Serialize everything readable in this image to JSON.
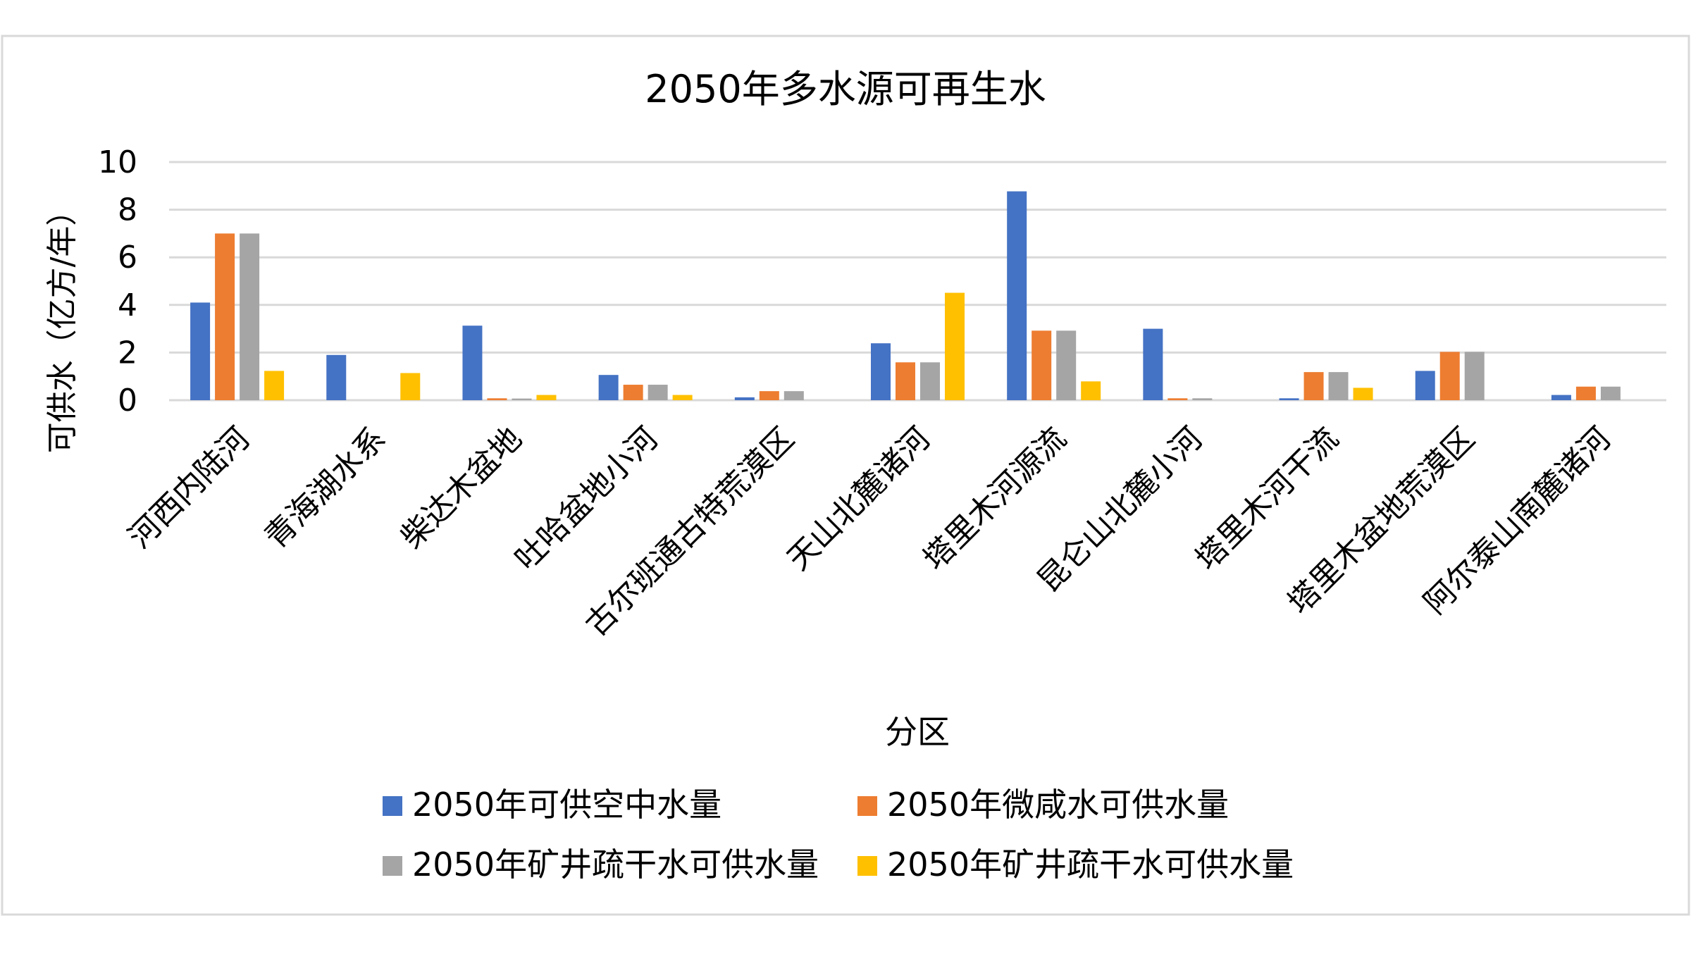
{
  "chart_data": {
    "type": "bar",
    "title": "2050年多水源可再生水",
    "xlabel": "分区",
    "ylabel": "可供水（亿方/年）",
    "ylim": [
      0,
      10
    ],
    "yticks": [
      "0",
      "2",
      "4",
      "6",
      "8",
      "10"
    ],
    "grid": true,
    "legend_position": "bottom",
    "categories": [
      "河西内陆河",
      "青海湖水系",
      "柴达木盆地",
      "吐哈盆地小河",
      "古尔班通古特荒漠区",
      "天山北麓诸河",
      "塔里木河源流",
      "昆仑山北麓小河",
      "塔里木河干流",
      "塔里木盆地荒漠区",
      "阿尔泰山南麓诸河"
    ],
    "series": [
      {
        "name": "2050年可供空中水量",
        "color": "#4472C4",
        "values": [
          4.1,
          1.9,
          3.13,
          1.06,
          0.12,
          2.39,
          8.77,
          3.0,
          0.08,
          1.23,
          0.22
        ]
      },
      {
        "name": "2050年微咸水可供水量",
        "color": "#ED7D31",
        "values": [
          7.0,
          0,
          0.08,
          0.65,
          0.38,
          1.59,
          2.92,
          0.08,
          1.18,
          2.03,
          0.57
        ]
      },
      {
        "name": "2050年矿井疏干水可供水量",
        "color": "#A5A5A5",
        "values": [
          7.0,
          0,
          0.07,
          0.65,
          0.38,
          1.59,
          2.92,
          0.08,
          1.18,
          2.03,
          0.57
        ]
      },
      {
        "name": "2050年矿井疏干水可供水量",
        "color": "#FFC000",
        "values": [
          1.23,
          1.14,
          0.22,
          0.22,
          0,
          4.51,
          0.79,
          0,
          0.52,
          0,
          0
        ]
      }
    ]
  }
}
